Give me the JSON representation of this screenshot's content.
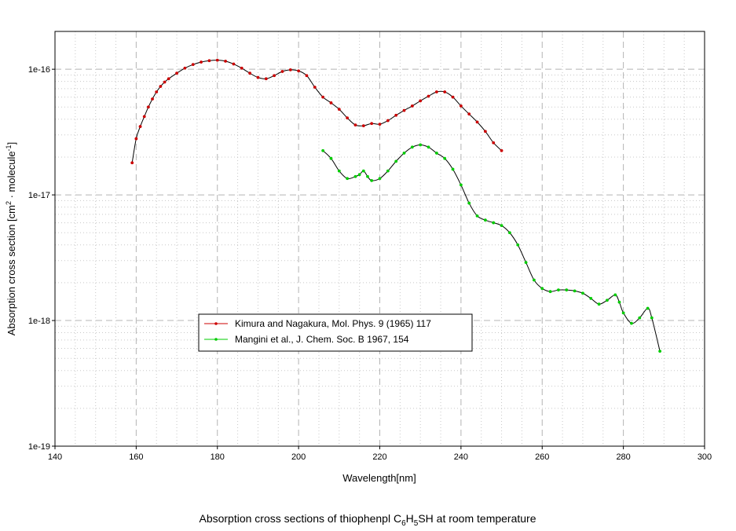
{
  "caption": {
    "prefix": "Absorption cross sections of thiophenpl C",
    "sub1": "6",
    "mid1": "H",
    "sub2": "5",
    "suffix": "SH at room temperature"
  },
  "chart_data": {
    "type": "line",
    "xlabel": "Wavelength[nm]",
    "ylabel": {
      "main": "Absorption cross section [cm",
      "sup1": "2",
      "mid": " · molecule",
      "sup2": "-1",
      "end": "]"
    },
    "xlim": [
      140,
      300
    ],
    "ylim": [
      1e-19,
      2e-16
    ],
    "yscale": "log",
    "grid": true,
    "legend_position": "center-left",
    "x_ticks": [
      "140",
      "160",
      "180",
      "200",
      "220",
      "240",
      "260",
      "280",
      "300"
    ],
    "y_ticks": [
      {
        "value": 1e-19,
        "label": "1e-19"
      },
      {
        "value": 1e-18,
        "label": "1e-18"
      },
      {
        "value": 1e-17,
        "label": "1e-17"
      },
      {
        "value": 1e-16,
        "label": "1e-16"
      }
    ],
    "series": [
      {
        "name": "Kimura and Nagakura, Mol. Phys. 9 (1965) 117",
        "color": "#cc0000",
        "x": [
          159,
          160,
          161,
          162,
          163,
          164,
          165,
          166,
          167,
          168,
          170,
          172,
          174,
          176,
          178,
          180,
          182,
          184,
          186,
          188,
          190,
          192,
          194,
          196,
          198,
          200,
          202,
          204,
          206,
          208,
          210,
          212,
          214,
          216,
          218,
          220,
          222,
          224,
          226,
          228,
          230,
          232,
          234,
          236,
          238,
          240,
          242,
          244,
          246,
          248,
          250
        ],
        "y": [
          1.8e-17,
          2.8e-17,
          3.5e-17,
          4.2e-17,
          5e-17,
          5.8e-17,
          6.6e-17,
          7.3e-17,
          7.9e-17,
          8.4e-17,
          9.3e-17,
          1.02e-16,
          1.09e-16,
          1.14e-16,
          1.17e-16,
          1.18e-16,
          1.16e-16,
          1.1e-16,
          1.02e-16,
          9.3e-17,
          8.6e-17,
          8.4e-17,
          8.9e-17,
          9.6e-17,
          9.9e-17,
          9.7e-17,
          8.9e-17,
          7.2e-17,
          6e-17,
          5.4e-17,
          4.8e-17,
          4.1e-17,
          3.6e-17,
          3.55e-17,
          3.7e-17,
          3.65e-17,
          3.9e-17,
          4.3e-17,
          4.7e-17,
          5.1e-17,
          5.6e-17,
          6.1e-17,
          6.6e-17,
          6.6e-17,
          6e-17,
          5.1e-17,
          4.4e-17,
          3.8e-17,
          3.2e-17,
          2.6e-17,
          2.25e-17
        ]
      },
      {
        "name": "Mangini et al., J. Chem. Soc. B 1967, 154",
        "color": "#00cc00",
        "x": [
          206,
          208,
          210,
          212,
          214,
          215,
          216,
          217,
          218,
          220,
          222,
          224,
          226,
          228,
          230,
          232,
          234,
          236,
          238,
          240,
          242,
          244,
          246,
          248,
          250,
          252,
          254,
          256,
          258,
          260,
          262,
          264,
          266,
          268,
          270,
          272,
          274,
          276,
          278,
          279,
          280,
          282,
          284,
          286,
          287,
          289
        ],
        "y": [
          2.25e-17,
          1.95e-17,
          1.55e-17,
          1.35e-17,
          1.4e-17,
          1.45e-17,
          1.55e-17,
          1.4e-17,
          1.3e-17,
          1.35e-17,
          1.55e-17,
          1.85e-17,
          2.15e-17,
          2.4e-17,
          2.5e-17,
          2.4e-17,
          2.15e-17,
          1.95e-17,
          1.6e-17,
          1.2e-17,
          8.6e-18,
          6.8e-18,
          6.3e-18,
          6e-18,
          5.7e-18,
          5e-18,
          4e-18,
          2.9e-18,
          2.1e-18,
          1.8e-18,
          1.7e-18,
          1.75e-18,
          1.75e-18,
          1.72e-18,
          1.65e-18,
          1.5e-18,
          1.35e-18,
          1.45e-18,
          1.6e-18,
          1.4e-18,
          1.15e-18,
          9.5e-19,
          1.05e-18,
          1.25e-18,
          1.05e-18,
          5.7e-19
        ]
      }
    ]
  }
}
